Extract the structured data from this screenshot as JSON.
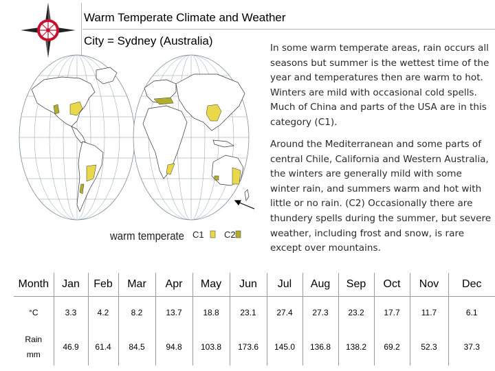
{
  "header": {
    "title": "Warm Temperate Climate and Weather",
    "city": "City = Sydney (Australia)"
  },
  "map": {
    "legend_label": "warm temperate",
    "legend_c1": "C1",
    "legend_c2": "C2",
    "c1_color": "#e8d84a",
    "c2_color": "#b4ad2a"
  },
  "description": {
    "p1": "In some warm temperate areas, rain occurs all seasons but summer is the wettest time of the year and temperatures then are warm to hot. Winters are mild with occasional cold spells. Much of China and parts of the USA are in this category (C1).",
    "p2": "Around the Mediterranean and some parts of central Chile, California and Western Australia, the winters are generally mild with some winter rain, and summers warm and hot with little or no rain. (C2) Occasionally there are thundery spells during the summer, but severe weather, including frost and snow, is rare except over mountains."
  },
  "table": {
    "header_label": "Month",
    "months": [
      "Jan",
      "Feb",
      "Mar",
      "Apr",
      "May",
      "Jun",
      "Jul",
      "Aug",
      "Sep",
      "Oct",
      "Nov",
      "Dec"
    ],
    "temp_label": "°C",
    "temps": [
      "3.3",
      "4.2",
      "8.2",
      "13.7",
      "18.8",
      "23.1",
      "27.4",
      "27.3",
      "23.2",
      "17.7",
      "11.7",
      "6.1"
    ],
    "rain_label_1": "Rain",
    "rain_label_2": "mm",
    "rain": [
      "46.9",
      "61.4",
      "84.5",
      "94.8",
      "103.8",
      "173.6",
      "145.0",
      "136.8",
      "138.2",
      "69.2",
      "52.3",
      "37.3"
    ]
  }
}
